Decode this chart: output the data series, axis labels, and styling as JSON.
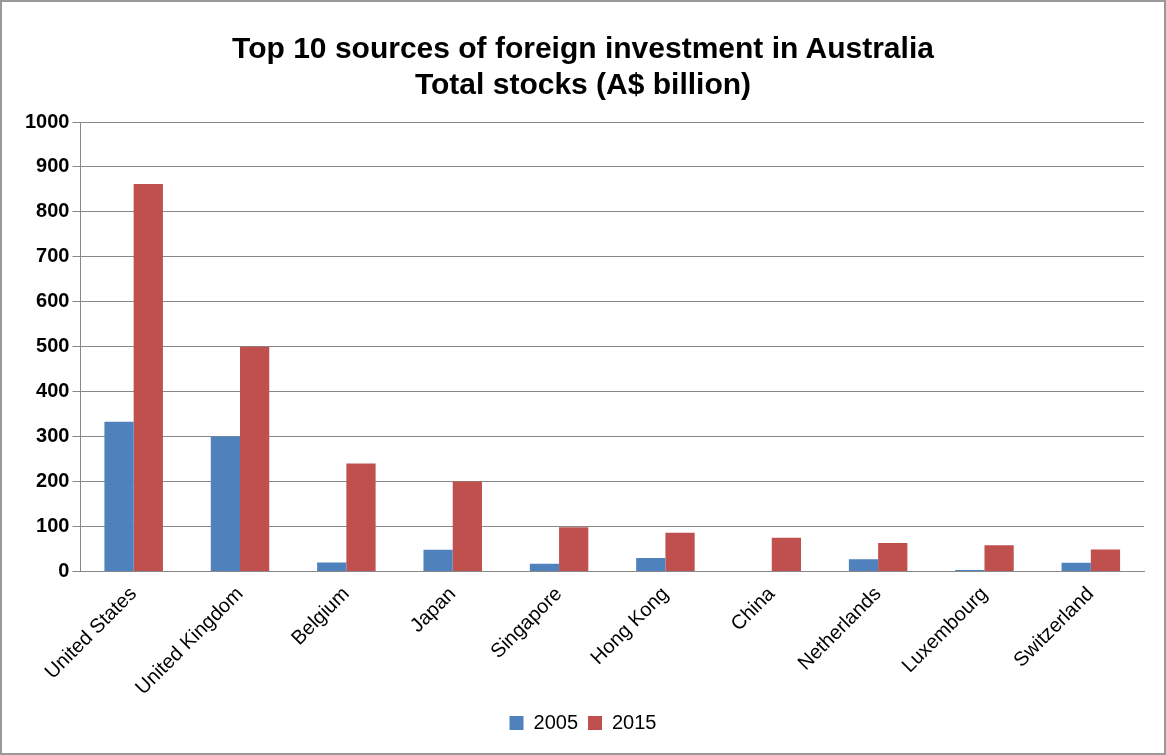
{
  "chart_data": {
    "type": "bar",
    "title": "Top 10 sources of foreign investment in Australia\nTotal stocks (A$ billion)",
    "categories": [
      "United States",
      "United Kingdom",
      "Belgium",
      "Japan",
      "Singapore",
      "Hong Kong",
      "China",
      "Netherlands",
      "Luxembourg",
      "Switzerland"
    ],
    "series": [
      {
        "name": "2005",
        "color": "#4f81bd",
        "values": [
          333,
          300,
          20,
          48,
          17,
          30,
          0,
          27,
          3,
          19
        ]
      },
      {
        "name": "2015",
        "color": "#c0504d",
        "values": [
          862,
          500,
          240,
          200,
          98,
          86,
          75,
          63,
          58,
          49
        ]
      }
    ],
    "ylim": [
      0,
      1000
    ],
    "yticks": [
      0,
      100,
      200,
      300,
      400,
      500,
      600,
      700,
      800,
      900,
      1000
    ],
    "grid": "y",
    "legend": "bottom"
  }
}
